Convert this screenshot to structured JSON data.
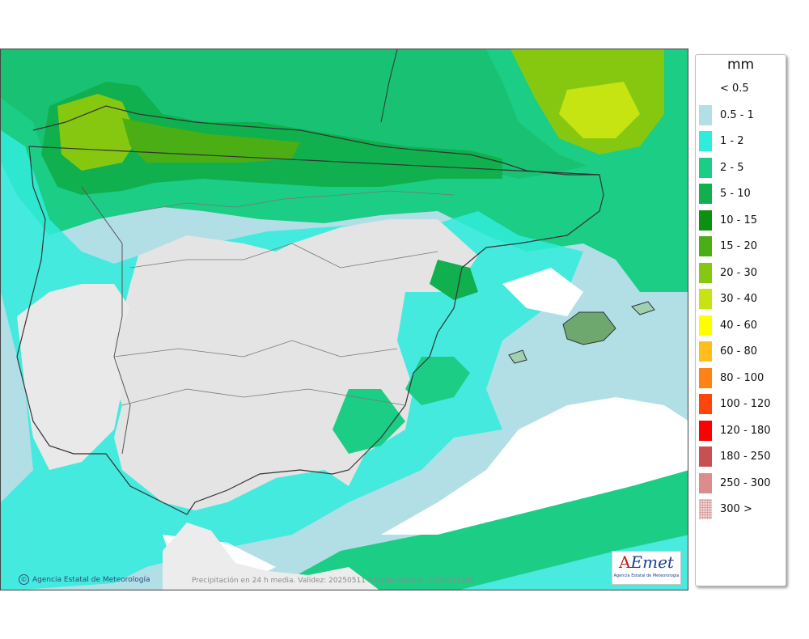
{
  "legend": {
    "unit": "mm",
    "items": [
      {
        "label": "< 0.5",
        "color": "#ffffff"
      },
      {
        "label": "0.5 - 1",
        "color": "#b2dfe6"
      },
      {
        "label": "1 - 2",
        "color": "#30ecdc"
      },
      {
        "label": "2 - 5",
        "color": "#1ccd86"
      },
      {
        "label": "5 - 10",
        "color": "#10b04e"
      },
      {
        "label": "10 - 15",
        "color": "#0b9010"
      },
      {
        "label": "15 - 20",
        "color": "#4aae14"
      },
      {
        "label": "20 - 30",
        "color": "#86c810"
      },
      {
        "label": "30 - 40",
        "color": "#c6e412"
      },
      {
        "label": "40 - 60",
        "color": "#ffff00"
      },
      {
        "label": "60 - 80",
        "color": "#ffbe1e"
      },
      {
        "label": "80 - 100",
        "color": "#ff8214"
      },
      {
        "label": "100 - 120",
        "color": "#ff460a"
      },
      {
        "label": "120 - 180",
        "color": "#ff0000"
      },
      {
        "label": "180 - 250",
        "color": "#c85050"
      },
      {
        "label": "250 - 300",
        "color": "#dc8c8c"
      },
      {
        "label": "300 >",
        "color": "#f2d2d2"
      }
    ]
  },
  "map": {
    "credit": "Agencia Estatal de Meteorología",
    "validity": "Precipitación en 24 h media. Validez: 20250511 Pasada modelo: 2025051100",
    "logo_text": "Emet",
    "logo_letter": "A",
    "logo_subtitle": "Agencia Estatal de Meteorología"
  }
}
